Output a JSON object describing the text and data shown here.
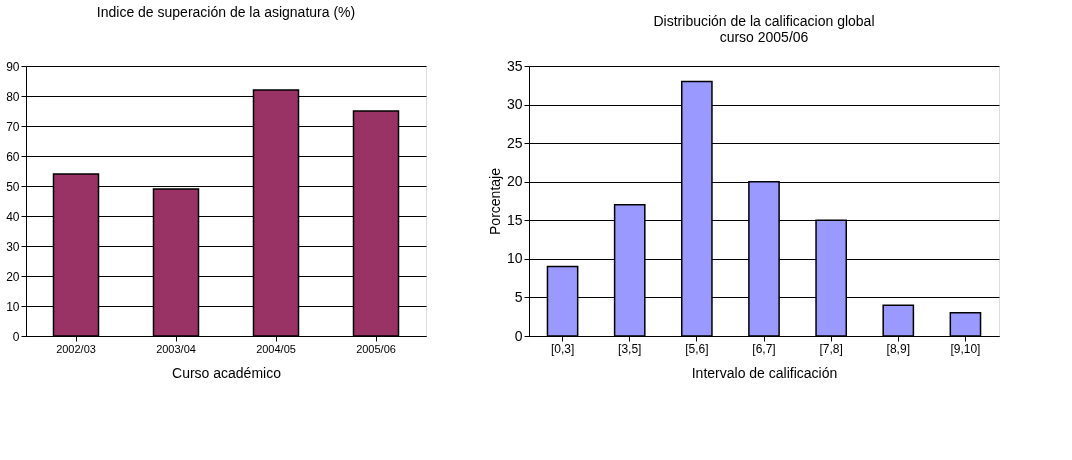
{
  "chart_data": [
    {
      "type": "bar",
      "title": "Indice de superación de la asignatura (%)",
      "xlabel": "Curso académico",
      "categories": [
        "2002/03",
        "2003/04",
        "2004/05",
        "2005/06"
      ],
      "values": [
        54,
        49,
        82,
        75
      ],
      "color": "#993366",
      "ylim": [
        0,
        90
      ],
      "yticks": [
        0,
        10,
        20,
        30,
        40,
        50,
        60,
        70,
        80,
        90
      ],
      "grid": "y"
    },
    {
      "type": "bar",
      "title": "Distribución de la calificacion global",
      "subtitle": "curso 2005/06",
      "xlabel": "Intervalo de calificación",
      "ylabel": "Porcentaje",
      "categories": [
        "[0,3]",
        "[3,5]",
        "[5,6]",
        "[6,7]",
        "[7,8]",
        "[8,9]",
        "[9,10]"
      ],
      "values": [
        9,
        17,
        33,
        20,
        15,
        4,
        3
      ],
      "color": "#9999ff",
      "ylim": [
        0,
        35
      ],
      "yticks": [
        0,
        5,
        10,
        15,
        20,
        25,
        30,
        35
      ],
      "grid": "y"
    }
  ]
}
